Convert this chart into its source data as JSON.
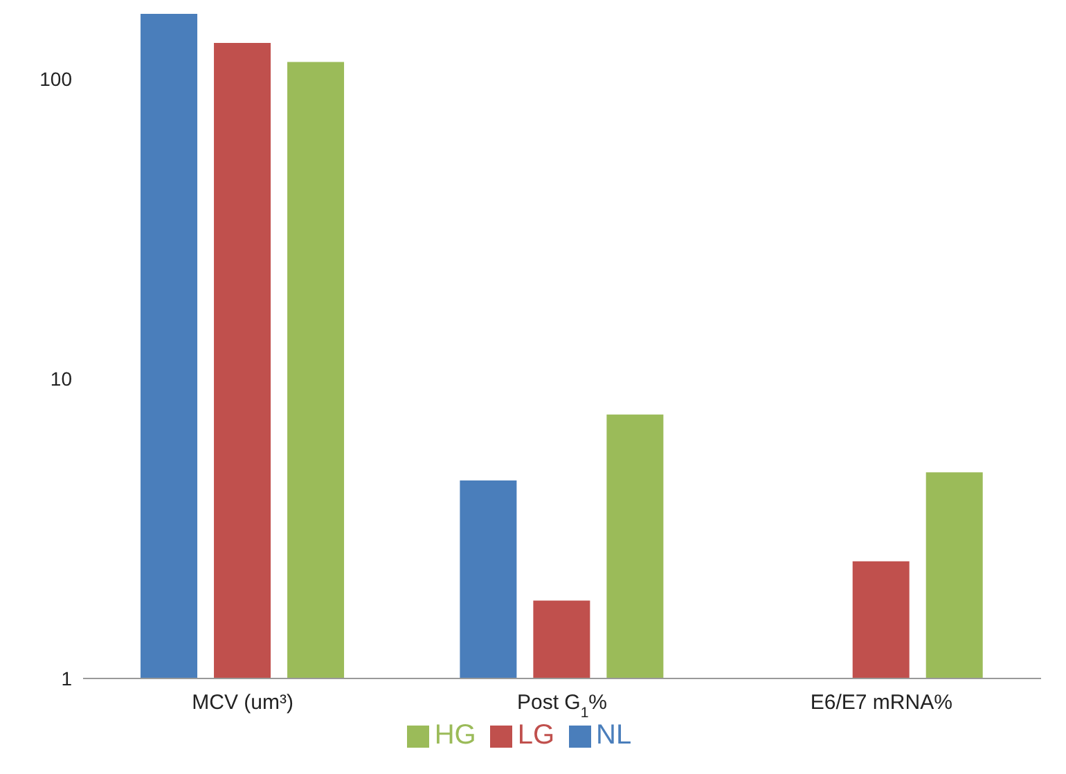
{
  "chart_data": {
    "type": "bar",
    "categories": [
      "MCV (um³)",
      "Post G$_{1}$%",
      "E6/E7 mRNA%"
    ],
    "series": [
      {
        "name": "NL",
        "color": "#4a7ebb",
        "values": [
          165,
          4.58,
          null
        ]
      },
      {
        "name": "LG",
        "color": "#c0504d",
        "values": [
          132,
          1.82,
          2.46
        ]
      },
      {
        "name": "HG",
        "color": "#9bbb59",
        "values": [
          114,
          7.6,
          4.87
        ]
      }
    ],
    "log": true,
    "ylim": [
      1,
      165
    ],
    "yticks": [
      1,
      10,
      100
    ],
    "grid": false,
    "legend": "bottom"
  }
}
